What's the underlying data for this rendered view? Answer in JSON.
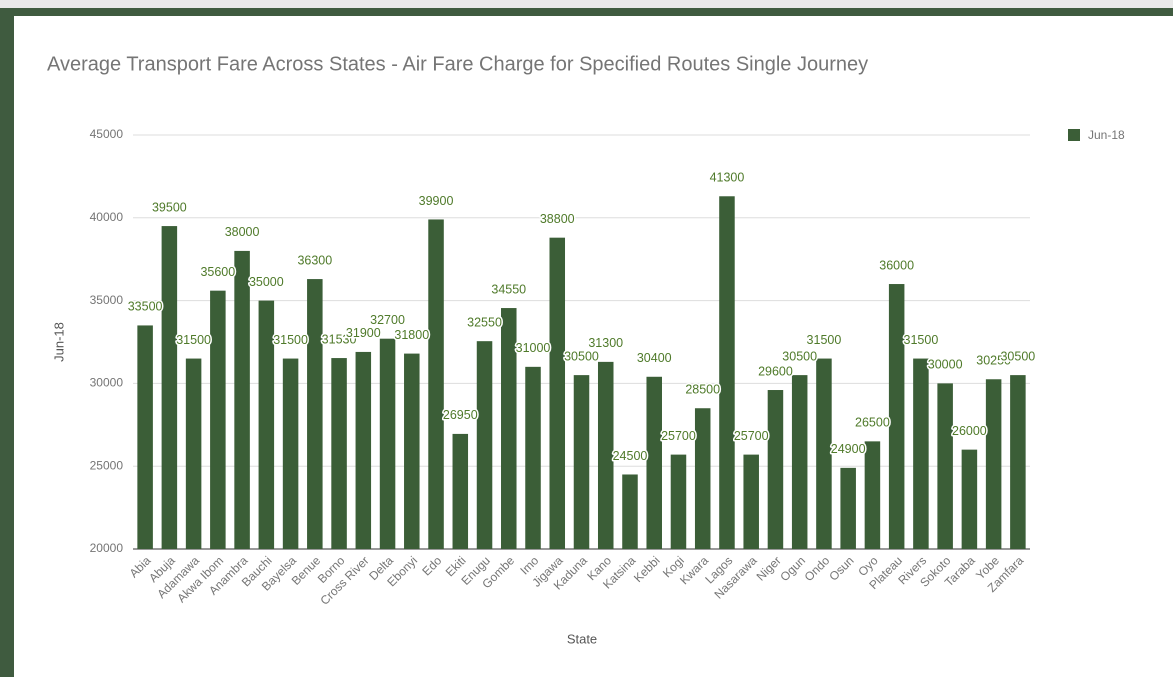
{
  "chart_data": {
    "type": "bar",
    "title": "Average Transport Fare Across States - Air Fare Charge for Specified Routes Single Journey",
    "x_label": "State",
    "y_label": "Jun-18",
    "categories": [
      "Abia",
      "Abuja",
      "Adamawa",
      "Akwa Ibom",
      "Anambra",
      "Bauchi",
      "Bayelsa",
      "Benue",
      "Borno",
      "Cross River",
      "Delta",
      "Ebonyi",
      "Edo",
      "Ekiti",
      "Enugu",
      "Gombe",
      "Imo",
      "Jigawa",
      "Kaduna",
      "Kano",
      "Katsina",
      "Kebbi",
      "Kogi",
      "Kwara",
      "Lagos",
      "Nasarawa",
      "Niger",
      "Ogun",
      "Ondo",
      "Osun",
      "Oyo",
      "Plateau",
      "Rivers",
      "Sokoto",
      "Taraba",
      "Yobe",
      "Zamfara"
    ],
    "series": [
      {
        "name": "Jun-18",
        "color": "#3b5e37",
        "values": [
          33500,
          39500,
          31500,
          35600,
          38000,
          35000,
          31500,
          36300,
          31530,
          31900,
          32700,
          31800,
          39900,
          26950,
          32550,
          34550,
          31000,
          38800,
          30500,
          31300,
          24500,
          30400,
          25700,
          28500,
          41300,
          25700,
          29600,
          30500,
          31500,
          24900,
          26500,
          36000,
          31500,
          30000,
          26000,
          30250,
          30500
        ]
      }
    ],
    "ylim": [
      20000,
      45000
    ],
    "yticks": [
      20000,
      25000,
      30000,
      35000,
      40000,
      45000
    ],
    "grid": true,
    "legend": "right"
  }
}
